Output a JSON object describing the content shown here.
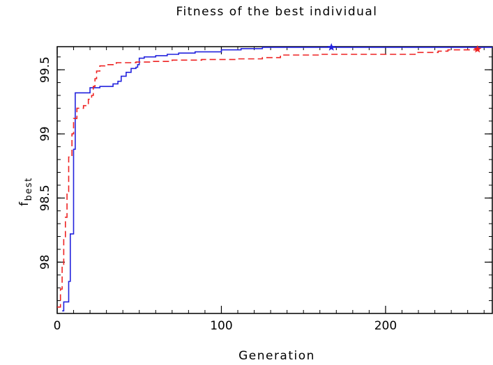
{
  "chart_data": {
    "type": "line",
    "title": "Fitness of the best individual",
    "xlabel": "Generation",
    "ylabel_main": "f",
    "ylabel_sub": "best",
    "xlim": [
      0,
      265
    ],
    "ylim": [
      97.6,
      99.68
    ],
    "x_ticks": [
      0,
      100,
      200
    ],
    "y_ticks": [
      98,
      98.5,
      99,
      99.5
    ],
    "x_minor_step": 10,
    "y_minor_step": 0.1,
    "grid": false,
    "legend": "none",
    "series": [
      {
        "color": "#2222dd",
        "style": "solid",
        "end_marker": "star",
        "points": [
          [
            3,
            97.62
          ],
          [
            4,
            97.69
          ],
          [
            6,
            97.69
          ],
          [
            7,
            97.85
          ],
          [
            8,
            98.22
          ],
          [
            9,
            98.22
          ],
          [
            10,
            98.88
          ],
          [
            11,
            99.32
          ],
          [
            12,
            99.32
          ],
          [
            19,
            99.32
          ],
          [
            20,
            99.36
          ],
          [
            26,
            99.37
          ],
          [
            30,
            99.37
          ],
          [
            34,
            99.39
          ],
          [
            37,
            99.41
          ],
          [
            39,
            99.45
          ],
          [
            42,
            99.48
          ],
          [
            45,
            99.51
          ],
          [
            48,
            99.52
          ],
          [
            49,
            99.54
          ],
          [
            50,
            99.59
          ],
          [
            53,
            99.6
          ],
          [
            60,
            99.61
          ],
          [
            67,
            99.62
          ],
          [
            74,
            99.63
          ],
          [
            84,
            99.64
          ],
          [
            100,
            99.655
          ],
          [
            112,
            99.665
          ],
          [
            125,
            99.675
          ],
          [
            167,
            99.675
          ],
          [
            255,
            99.675
          ],
          [
            265,
            99.675
          ]
        ],
        "marker_point": [
          167,
          99.675
        ]
      },
      {
        "color": "#ee2222",
        "style": "dashed",
        "end_marker": "star",
        "points": [
          [
            0,
            97.65
          ],
          [
            2,
            97.79
          ],
          [
            3,
            97.97
          ],
          [
            4,
            98.18
          ],
          [
            5,
            98.35
          ],
          [
            6,
            98.55
          ],
          [
            7,
            98.82
          ],
          [
            9,
            99.0
          ],
          [
            10,
            99.12
          ],
          [
            12,
            99.2
          ],
          [
            16,
            99.22
          ],
          [
            19,
            99.27
          ],
          [
            21,
            99.3
          ],
          [
            22,
            99.37
          ],
          [
            23,
            99.43
          ],
          [
            24,
            99.49
          ],
          [
            26,
            99.53
          ],
          [
            29,
            99.54
          ],
          [
            33,
            99.54
          ],
          [
            36,
            99.555
          ],
          [
            48,
            99.56
          ],
          [
            58,
            99.565
          ],
          [
            70,
            99.575
          ],
          [
            88,
            99.58
          ],
          [
            110,
            99.585
          ],
          [
            125,
            99.595
          ],
          [
            136,
            99.615
          ],
          [
            160,
            99.62
          ],
          [
            200,
            99.62
          ],
          [
            218,
            99.635
          ],
          [
            232,
            99.645
          ],
          [
            238,
            99.655
          ],
          [
            255,
            99.66
          ]
        ],
        "marker_point": [
          256,
          99.66
        ]
      }
    ]
  }
}
